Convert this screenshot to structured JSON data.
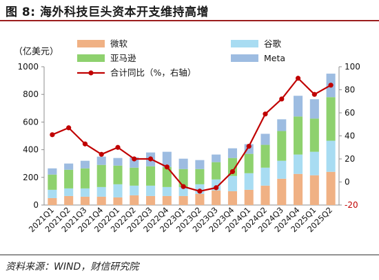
{
  "figure": {
    "title": "图 8:  海外科技巨头资本开支维持高增",
    "source": "资料来源：WIND，财信研究院"
  },
  "chart_data": {
    "type": "bar",
    "stacked": true,
    "categories": [
      "2021Q1",
      "2021Q2",
      "2021Q3",
      "2021Q4",
      "2022Q1",
      "2022Q2",
      "2022Q3",
      "2022Q4",
      "2023Q1",
      "2023Q2",
      "2023Q3",
      "2023Q4",
      "2024Q1",
      "2024Q2",
      "2024Q3",
      "2024Q4",
      "2025Q1",
      "2025Q2"
    ],
    "y_left": {
      "label": "（亿美元）",
      "lim": [
        0,
        1000
      ],
      "ticks": [
        0,
        200,
        400,
        600,
        800,
        1000
      ]
    },
    "y_right": {
      "lim": [
        -20,
        100
      ],
      "ticks": [
        -20,
        0,
        20,
        40,
        60,
        80,
        100
      ]
    },
    "grid": false,
    "series": [
      {
        "name": "微软",
        "type": "bar",
        "axis": "left",
        "color": "#f0b184",
        "values": [
          50,
          65,
          60,
          60,
          55,
          70,
          65,
          65,
          65,
          80,
          105,
          100,
          110,
          140,
          190,
          225,
          215,
          240
        ]
      },
      {
        "name": "谷歌",
        "type": "bar",
        "axis": "left",
        "color": "#a8dcf2",
        "values": [
          60,
          55,
          60,
          70,
          95,
          70,
          75,
          65,
          65,
          70,
          80,
          110,
          120,
          130,
          130,
          140,
          170,
          225
        ]
      },
      {
        "name": "亚马逊",
        "type": "bar",
        "axis": "left",
        "color": "#8ed16e",
        "values": [
          110,
          135,
          145,
          160,
          135,
          130,
          140,
          145,
          130,
          110,
          125,
          130,
          140,
          165,
          215,
          275,
          240,
          315
        ]
      },
      {
        "name": "Meta",
        "type": "bar",
        "axis": "left",
        "color": "#9dbce1",
        "values": [
          45,
          45,
          55,
          60,
          55,
          75,
          100,
          110,
          75,
          65,
          55,
          70,
          70,
          80,
          85,
          150,
          140,
          170
        ]
      },
      {
        "name": "合计同比（%，右轴）",
        "type": "line",
        "axis": "right",
        "color": "#c00000",
        "values": [
          41,
          47,
          33,
          24,
          30,
          20,
          20,
          13,
          -4,
          -8,
          -5,
          9,
          31,
          59,
          72,
          90,
          76,
          84
        ]
      }
    ],
    "legend": {
      "placement": "top",
      "columns": 2
    }
  }
}
